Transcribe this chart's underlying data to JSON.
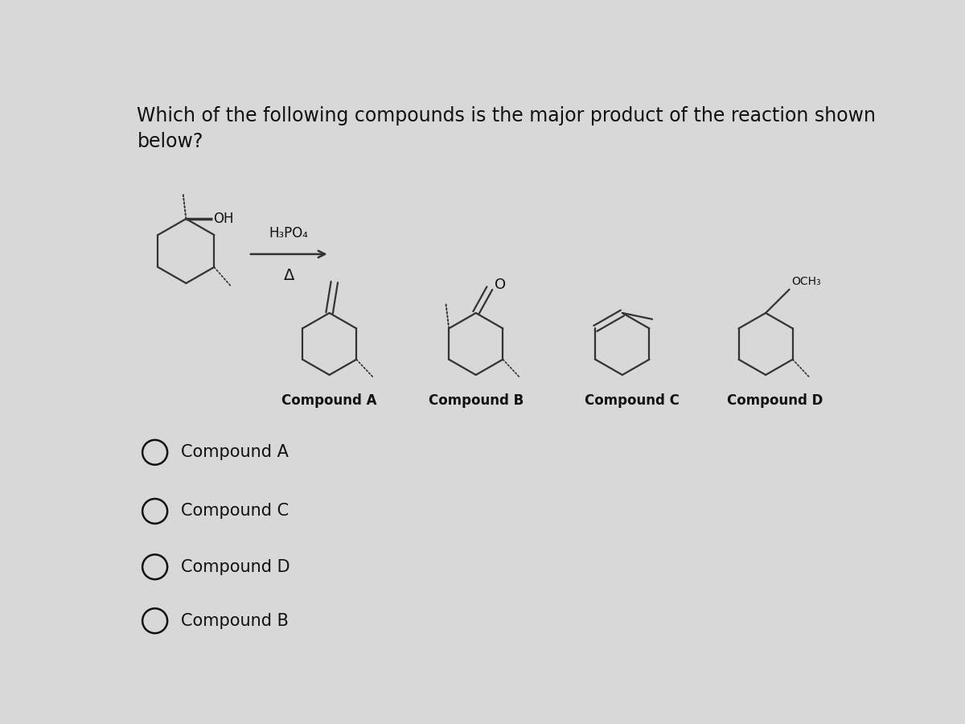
{
  "title": "Which of the following compounds is the major product of the reaction shown\nbelow?",
  "background_color": "#d8d8d8",
  "title_fontsize": 17,
  "reagent_label": "H₃PO₄",
  "heat_label": "Δ",
  "compound_labels": [
    "Compound A",
    "Compound B",
    "Compound C",
    "Compound D"
  ],
  "answer_choices": [
    "Compound A",
    "Compound C",
    "Compound D",
    "Compound B"
  ],
  "text_color": "#111111",
  "line_color": "#333333"
}
